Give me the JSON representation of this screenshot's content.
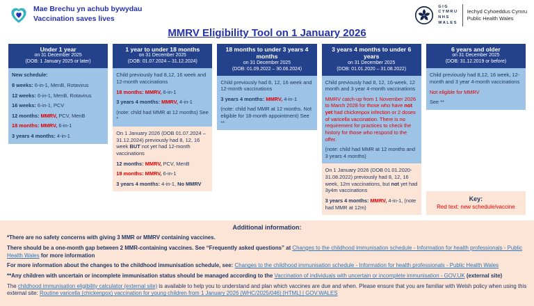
{
  "page": {
    "brand": {
      "tagline_cy": "Mae Brechu yn achub bywydau",
      "tagline_en": "Vaccination saves lives"
    },
    "nhs_logo": {
      "lines": [
        "GIG",
        "CYMRU",
        "NHS",
        "WALES"
      ],
      "org_cy": "Iechyd Cyhoeddus Cymru",
      "org_en": "Public Health Wales"
    },
    "title": "MMRV Eligibility Tool on 1 January 2026"
  },
  "colors": {
    "navy": "#1F3864",
    "header_blue": "#24418C",
    "light_blue": "#9DC3E6",
    "red": "#E00000",
    "peach": "#FCE4D6",
    "link_blue": "#2E75B6",
    "title_blue": "#2533A8"
  },
  "columns": [
    {
      "title": "Under 1 year",
      "subtitles": [
        "on 31 December 2025",
        "(DOB: 1 January 2025 or later)"
      ],
      "body": [
        [
          [
            "b",
            "New schedule:"
          ]
        ],
        [
          [
            "b",
            "8 weeks: "
          ],
          [
            "n",
            "6-in-1, MenB, Rotavirus"
          ]
        ],
        [
          [
            "b",
            "12 weeks: "
          ],
          [
            "n",
            "6-in-1, MenB, Rotavirus"
          ]
        ],
        [
          [
            "b",
            "16 weeks: "
          ],
          [
            "n",
            "6-in-1, PCV"
          ]
        ],
        [
          [
            "b",
            "12 months: "
          ],
          [
            "rb",
            "MMRV,"
          ],
          [
            "n",
            " PCV,  MenB"
          ]
        ],
        [
          [
            "rb",
            "18 months: MMRV,"
          ],
          [
            "n",
            " 6-in-1"
          ]
        ],
        [
          [
            "b",
            "3 years 4 months: "
          ],
          [
            "n",
            "4-in-1"
          ]
        ]
      ]
    },
    {
      "title": "1 year to under 18 months",
      "subtitles": [
        "on 31 December 2025",
        "(DOB: 01.07.2024 – 31.12.2024)"
      ],
      "body": [
        [
          [
            "n",
            "Child previously had 8,12, 16 week and 12-month vaccinations"
          ]
        ],
        [
          [
            "rb",
            "18 months: MMRV,"
          ],
          [
            "n",
            " 6-in-1"
          ]
        ],
        [
          [
            "b",
            "3 years 4 months: "
          ],
          [
            "rb",
            "MMRV,"
          ],
          [
            "n",
            " 4-in-1"
          ]
        ],
        [
          [
            "n",
            "(note: child had MMR at 12 months) See *"
          ]
        ]
      ],
      "pink": [
        [
          [
            "n",
            "On 1 January 2026 (DOB 01.07.2024 – 31.12.2024) previously had 8, 12, 16 week "
          ],
          [
            "b",
            "BUT"
          ],
          [
            "n",
            " not yet had 12-month vaccinations"
          ]
        ],
        [
          [
            "b",
            "12 months: "
          ],
          [
            "rb",
            "MMRV,"
          ],
          [
            "n",
            " PCV, MenB"
          ]
        ],
        [
          [
            "rb",
            "18 months: MMRV,"
          ],
          [
            "n",
            " 6-in-1"
          ]
        ],
        [
          [
            "b",
            "3 years 4 months: "
          ],
          [
            "n",
            "4-in-1, "
          ],
          [
            "b",
            "No MMRV"
          ]
        ]
      ]
    },
    {
      "title": "18 months to under 3 years 4 months",
      "subtitles": [
        "on 31 December 2025",
        "(DOB: 01.09.2022 – 30.06.2024)"
      ],
      "body": [
        [
          [
            "n",
            "Child previously had 8, 12, 16 week and 12-month vaccinations"
          ]
        ],
        [
          [
            "b",
            "3 years 4 months: "
          ],
          [
            "rb",
            "MMRV,"
          ],
          [
            "n",
            " 4-in-1"
          ]
        ],
        [
          [
            "n",
            "(note: child had MMR at 12 months. Not eligible for 18-month appointment) See **"
          ]
        ]
      ]
    },
    {
      "title": "3 years 4 months to under 6 years",
      "subtitles": [
        "on 31 December 2025",
        "(DOB: 01.01.2020 – 31.08.2022)"
      ],
      "body": [
        [
          [
            "n",
            "Child previously had 8, 12, 16-week, 12 month and 3 year 4-month vaccinations"
          ]
        ],
        [
          [
            "r",
            "MMRV catch-up from 1 November 2026 to March 2028 for those who have "
          ],
          [
            "rb",
            "not yet"
          ],
          [
            "r",
            " had chickenpox infection or 2 doses of varicella vaccination. There is no requirement for practices to check the history for those who respond to the offer."
          ]
        ],
        [
          [
            "n",
            "(note: child had MMR at 12 months and 3 years 4 months)"
          ]
        ]
      ],
      "pink": [
        [
          [
            "n",
            "On 1 January 2026 (DOB 01.01.2020-31.08.2022) previously had 8, 12, 16 week, 12m vaccinations, but "
          ],
          [
            "b",
            "not"
          ],
          [
            "n",
            " yet had 3y4m vaccinations"
          ]
        ],
        [
          [
            "b",
            "3 years 4 months: "
          ],
          [
            "rb",
            "MMRV,"
          ],
          [
            "n",
            " 4-in-1, (note had MMR at 12m)"
          ]
        ]
      ]
    },
    {
      "title": "6 years and older",
      "subtitles": [
        "on 31 December 2025",
        "(DOB: 31.12.2019 or before)"
      ],
      "body": [
        [
          [
            "n",
            "Child previously had 8,12, 16 week, 12-month and 3 year 4-month vaccinations"
          ]
        ],
        [
          [
            "r",
            "Not eligible for MMRV"
          ]
        ],
        [
          [
            "n",
            "See **"
          ]
        ]
      ]
    }
  ],
  "key": {
    "label": "Key:",
    "text": "Red text: new schedule/vaccine"
  },
  "additional": {
    "title": "Additional information:",
    "lines": [
      [
        [
          "b",
          "*There are no safety concerns with giving 3 MMR or MMRV containing vaccines."
        ]
      ],
      [
        [
          "b",
          "There should be a one-month gap between 2 MMR-containing vaccines. See “Frequently asked questions” at  "
        ],
        [
          "l",
          "Changes to the childhood immunisation schedule - Information for health professionals - Public Health Wales"
        ],
        [
          "b",
          " for more information"
        ]
      ],
      [
        [
          "b",
          "For more information about the changes to the childhood immunisation schedule, see: "
        ],
        [
          "l",
          "Changes to the childhood immunisation schedule - Information for health professionals - Public Health Wales"
        ]
      ],
      [
        [
          "b",
          "**Any children with uncertain or incomplete immunisation status should be managed according to the "
        ],
        [
          "l",
          "Vaccination of individuals with uncertain or incomplete immunisation - GOV.UK"
        ],
        [
          "b",
          " (external site)"
        ]
      ],
      [
        [
          "n",
          "The "
        ],
        [
          "l",
          "childhood immunisation eligibility calculator (external site)"
        ],
        [
          "n",
          " is available to help you to understand and plan which vaccines are due and when.  Please ensure that you are familiar with Welsh policy when using this external site: "
        ],
        [
          "l",
          "Routine varicella (chickenpox) vaccination for young children from 1 January 2026 (WHC/2025/046) [HTML] | GOV.WALES"
        ]
      ]
    ]
  }
}
